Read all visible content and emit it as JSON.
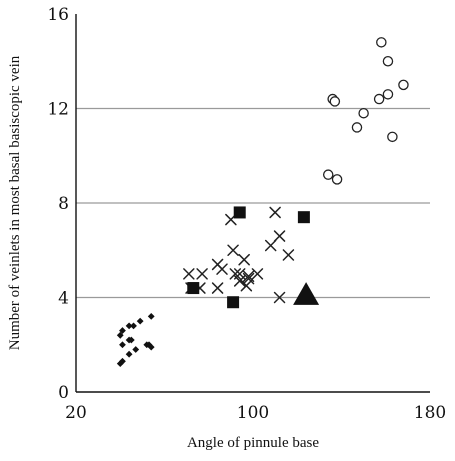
{
  "chart_data": {
    "type": "scatter",
    "title": "",
    "xlabel": "Angle of pinnule base",
    "ylabel": "Number of veinlets in most basal basiscopic vein",
    "xlim": [
      20,
      180
    ],
    "ylim": [
      0,
      16
    ],
    "xticks": [
      20,
      100,
      180
    ],
    "yticks": [
      0,
      4,
      8,
      12,
      16
    ],
    "grid": {
      "horizontal_lines_at": [
        4,
        8,
        12
      ],
      "vertical": false
    },
    "legend": "none",
    "series": [
      {
        "marker": "diamond",
        "points": [
          [
            40,
            1.2
          ],
          [
            41,
            1.3
          ],
          [
            40,
            2.4
          ],
          [
            41,
            2.6
          ],
          [
            44,
            2.8
          ],
          [
            46,
            2.8
          ],
          [
            49,
            3.0
          ],
          [
            54,
            3.2
          ],
          [
            41,
            2.0
          ],
          [
            44,
            2.2
          ],
          [
            45,
            2.2
          ],
          [
            47,
            1.8
          ],
          [
            44,
            1.6
          ],
          [
            52,
            2.0
          ],
          [
            53,
            2.0
          ],
          [
            54,
            1.9
          ]
        ]
      },
      {
        "marker": "cross",
        "points": [
          [
            71,
            5.0
          ],
          [
            77,
            5.0
          ],
          [
            72,
            4.4
          ],
          [
            76,
            4.4
          ],
          [
            84,
            5.4
          ],
          [
            86,
            5.2
          ],
          [
            84,
            4.4
          ],
          [
            90,
            7.3
          ],
          [
            91,
            6.0
          ],
          [
            92,
            5.0
          ],
          [
            94,
            5.0
          ],
          [
            94,
            4.7
          ],
          [
            96,
            5.6
          ],
          [
            98,
            4.9
          ],
          [
            97,
            4.5
          ],
          [
            98,
            4.8
          ],
          [
            110,
            7.6
          ],
          [
            108,
            6.2
          ],
          [
            112,
            6.6
          ],
          [
            116,
            5.8
          ],
          [
            112,
            4.0
          ],
          [
            102,
            5.0
          ]
        ]
      },
      {
        "marker": "square",
        "points": [
          [
            73,
            4.4
          ],
          [
            91,
            3.8
          ],
          [
            94,
            7.6
          ],
          [
            123,
            7.4
          ]
        ]
      },
      {
        "marker": "triangle",
        "points": [
          [
            124,
            4.1
          ]
        ]
      },
      {
        "marker": "circle",
        "points": [
          [
            134,
            9.2
          ],
          [
            138,
            9.0
          ],
          [
            136,
            12.4
          ],
          [
            137,
            12.3
          ],
          [
            147,
            11.2
          ],
          [
            150,
            11.8
          ],
          [
            158,
            14.8
          ],
          [
            157,
            12.4
          ],
          [
            161,
            12.6
          ],
          [
            161,
            14.0
          ],
          [
            163,
            10.8
          ],
          [
            168,
            13.0
          ]
        ]
      }
    ]
  }
}
